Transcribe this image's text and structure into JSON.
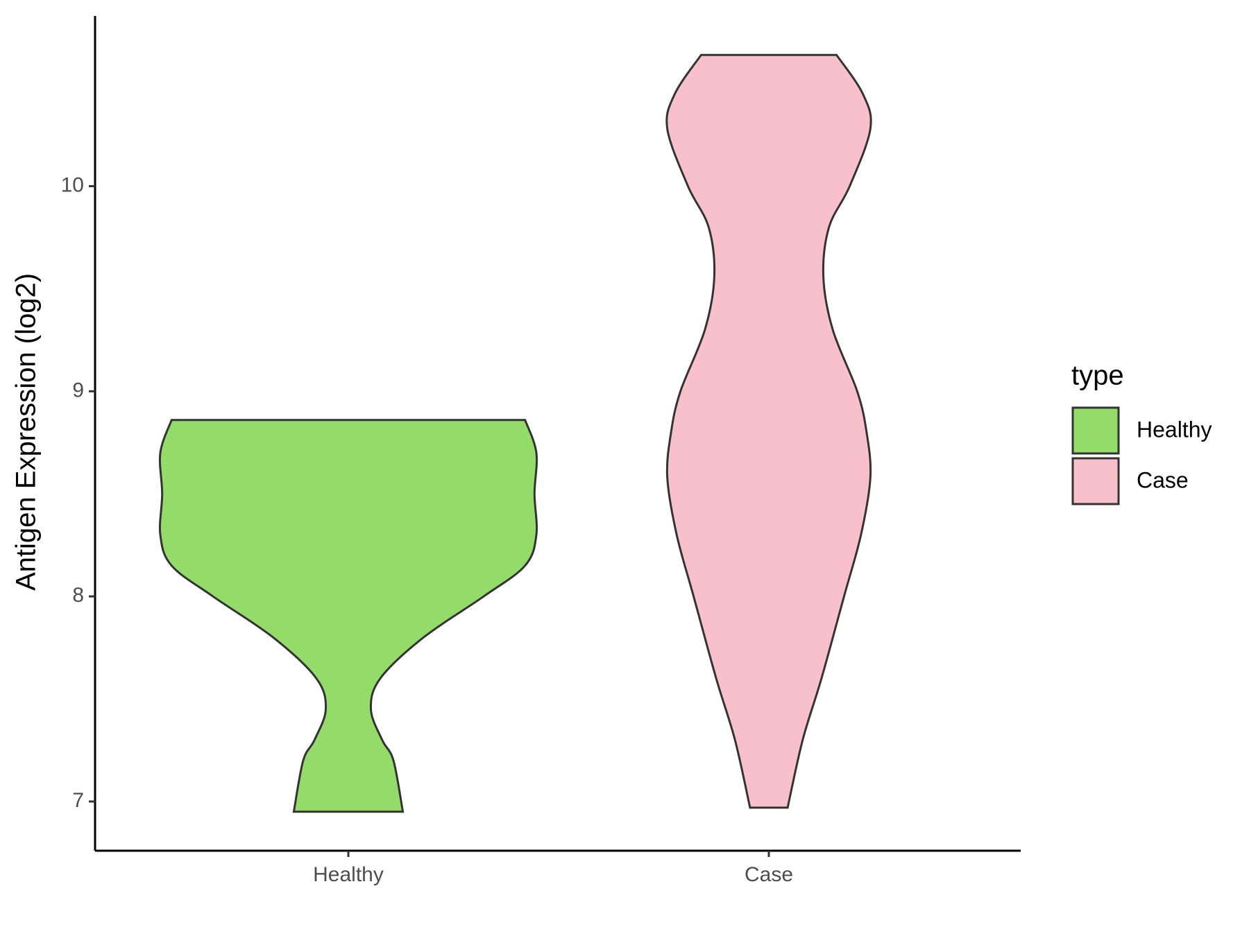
{
  "chart_data": {
    "type": "violin",
    "y_label": "Antigen Expression (log2)",
    "categories": [
      "Healthy",
      "Case"
    ],
    "ylim": [
      6.76,
      10.83
    ],
    "yticks": [
      7,
      8,
      9,
      10
    ],
    "legend_title": "type",
    "legend": "right",
    "series": [
      {
        "name": "Healthy",
        "color": "#93dc6a",
        "y": [
          8.86,
          8.7,
          8.5,
          8.3,
          8.15,
          8.0,
          7.8,
          7.6,
          7.45,
          7.3,
          7.2,
          6.95
        ],
        "density": [
          0.94,
          1.0,
          0.99,
          1.0,
          0.94,
          0.72,
          0.4,
          0.17,
          0.12,
          0.18,
          0.24,
          0.29
        ]
      },
      {
        "name": "Case",
        "color": "#f7c0cb",
        "y": [
          10.64,
          10.45,
          10.28,
          10.0,
          9.8,
          9.56,
          9.3,
          9.0,
          8.8,
          8.58,
          8.3,
          8.0,
          7.6,
          7.3,
          6.97
        ],
        "density": [
          0.36,
          0.5,
          0.54,
          0.43,
          0.32,
          0.29,
          0.34,
          0.47,
          0.52,
          0.54,
          0.49,
          0.4,
          0.28,
          0.18,
          0.1
        ]
      }
    ]
  }
}
